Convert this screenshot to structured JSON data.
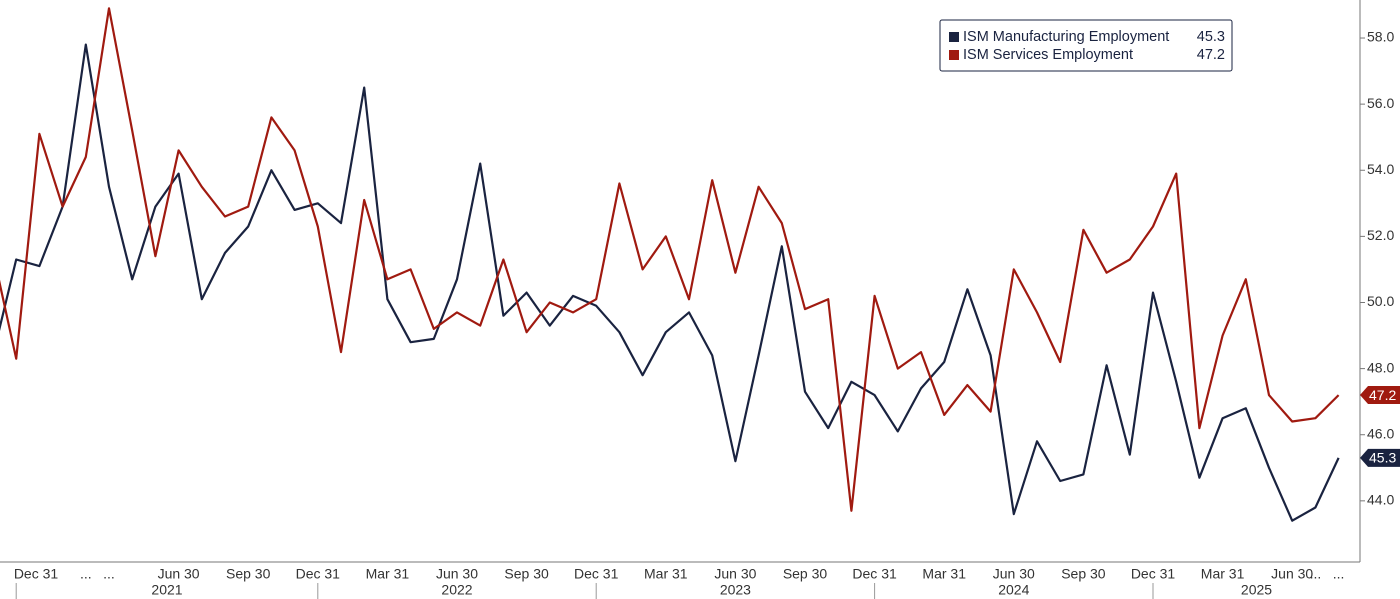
{
  "chart_data": {
    "type": "line",
    "categories": [
      null,
      "Dec 31",
      null,
      null,
      "...",
      "...",
      null,
      null,
      "Jun 30",
      null,
      null,
      "Sep 30",
      null,
      null,
      "Dec 31",
      null,
      null,
      "Mar 31",
      null,
      null,
      "Jun 30",
      null,
      null,
      "Sep 30",
      null,
      null,
      "Dec 31",
      null,
      null,
      "Mar 31",
      null,
      null,
      "Jun 30",
      null,
      null,
      "Sep 30",
      null,
      null,
      "Dec 31",
      null,
      null,
      "Mar 31",
      null,
      null,
      "Jun 30",
      null,
      null,
      "Sep 30",
      null,
      null,
      "Dec 31",
      null,
      null,
      "Mar 31",
      null,
      null,
      "Jun 30",
      "...",
      "..."
    ],
    "years": [
      "2021",
      "2022",
      "2023",
      "2024",
      "2025"
    ],
    "series": [
      {
        "name": "ISM Manufacturing Employment",
        "color": "#1a2340",
        "values": [
          48.4,
          51.3,
          51.1,
          52.9,
          57.8,
          53.5,
          50.7,
          52.9,
          53.9,
          50.1,
          51.5,
          52.3,
          54.0,
          52.8,
          53.0,
          52.4,
          56.5,
          50.1,
          48.8,
          48.9,
          50.7,
          54.2,
          49.6,
          50.3,
          49.3,
          50.2,
          49.9,
          49.1,
          47.8,
          49.1,
          49.7,
          48.4,
          45.2,
          48.4,
          51.7,
          47.3,
          46.2,
          47.6,
          47.2,
          46.1,
          47.4,
          48.2,
          50.4,
          48.4,
          43.6,
          45.8,
          44.6,
          44.8,
          48.1,
          45.4,
          50.3,
          47.6,
          44.7,
          46.5,
          46.8,
          45.0,
          43.4,
          43.8,
          45.3
        ]
      },
      {
        "name": "ISM Services Employment",
        "color": "#a01a10",
        "values": [
          51.5,
          48.3,
          55.1,
          52.9,
          54.4,
          58.9,
          55.2,
          51.4,
          54.6,
          53.5,
          52.6,
          52.9,
          55.6,
          54.6,
          52.3,
          48.5,
          53.1,
          50.7,
          51.0,
          49.2,
          49.7,
          49.3,
          51.3,
          49.1,
          50.0,
          49.7,
          50.1,
          53.6,
          51.0,
          52.0,
          50.1,
          53.7,
          50.9,
          53.5,
          52.4,
          49.8,
          50.1,
          43.7,
          50.2,
          48.0,
          48.5,
          46.6,
          47.5,
          46.7,
          51.0,
          49.7,
          48.2,
          52.2,
          50.9,
          51.3,
          52.3,
          53.9,
          46.2,
          49.0,
          50.7,
          47.2,
          46.4,
          46.5,
          47.2
        ]
      }
    ],
    "ylim": [
      42.15,
      59.15
    ],
    "yticks": [
      {
        "value": 44,
        "label": "44.0"
      },
      {
        "value": 46,
        "label": "46.0"
      },
      {
        "value": 48,
        "label": "48.0"
      },
      {
        "value": 50,
        "label": "50.0"
      },
      {
        "value": 52,
        "label": "52.0"
      },
      {
        "value": 54,
        "label": "54.0"
      },
      {
        "value": 56,
        "label": "56.0"
      },
      {
        "value": 58,
        "label": "58.0"
      }
    ],
    "legend": "top-right"
  }
}
